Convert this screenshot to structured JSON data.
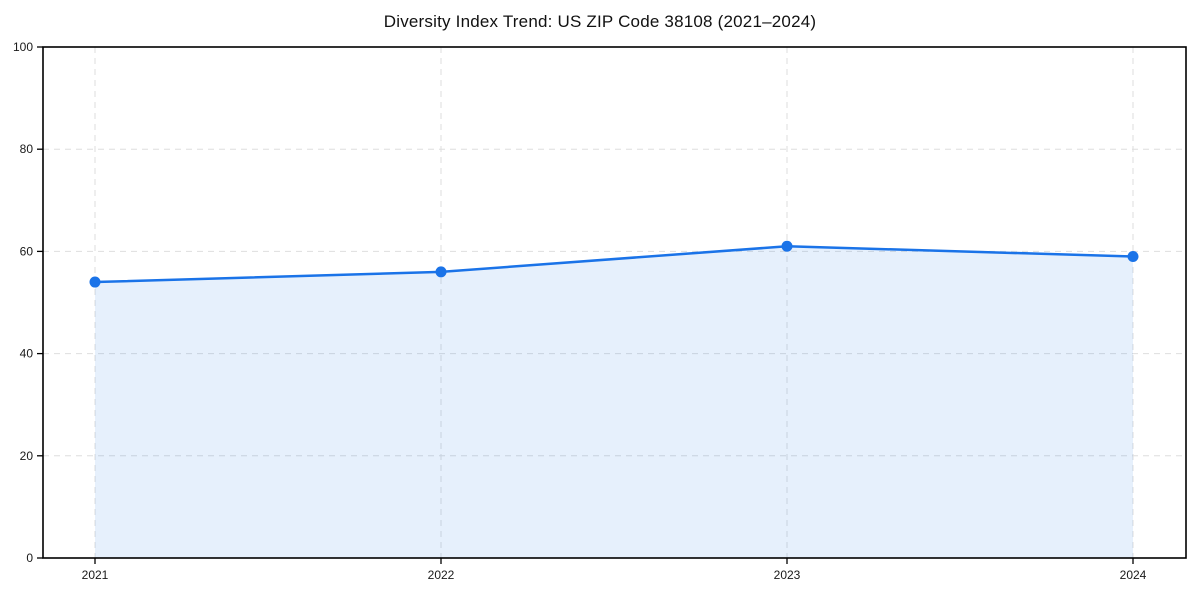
{
  "page": {
    "background": "#ffffff"
  },
  "chart_data": {
    "type": "line",
    "title": "Diversity Index Trend: US ZIP Code 38108 (2021–2024)",
    "xlabel": "",
    "ylabel": "",
    "categories": [
      "2021",
      "2022",
      "2023",
      "2024"
    ],
    "series": [
      {
        "name": "Diversity Index",
        "values": [
          54,
          56,
          61,
          59
        ]
      }
    ],
    "ylim": [
      0,
      100
    ],
    "yticks": [
      0,
      20,
      40,
      60,
      80,
      100
    ],
    "grid": "dashed, both axes",
    "legend": "none",
    "area_fill": true,
    "marker": "circle",
    "colors": {
      "line": "#1a73e8",
      "marker": "#1a73e8",
      "fill": "rgba(26,115,232,0.11)",
      "grid": "#dedede",
      "axis": "#000000",
      "tick_label": "#1a1a1a",
      "title": "#111111"
    }
  }
}
